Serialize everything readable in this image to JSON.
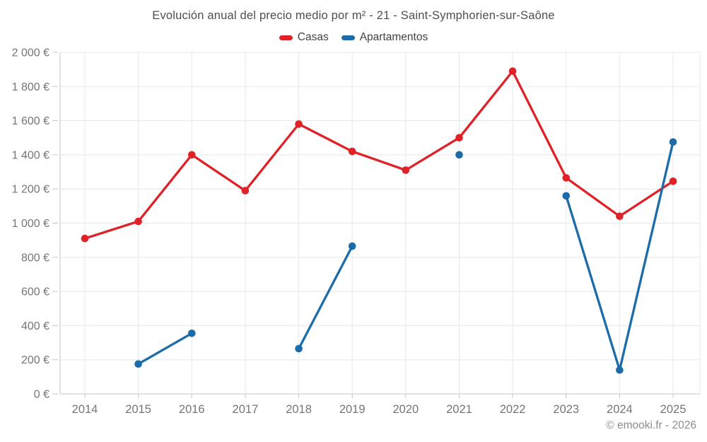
{
  "chart_data": {
    "type": "line",
    "title": "Evolución anual del precio medio por m² - 21 - Saint-Symphorien-sur-Saône",
    "xlabel": "",
    "ylabel": "",
    "categories": [
      "2014",
      "2015",
      "2016",
      "2017",
      "2018",
      "2019",
      "2020",
      "2021",
      "2022",
      "2023",
      "2024",
      "2025"
    ],
    "series": [
      {
        "name": "Casas",
        "color": "#df2228",
        "values": [
          910,
          1010,
          1400,
          1190,
          1580,
          1420,
          1310,
          1500,
          1890,
          1265,
          1040,
          1245
        ]
      },
      {
        "name": "Apartamentos",
        "color": "#1b6ca8",
        "values": [
          null,
          175,
          355,
          null,
          265,
          865,
          null,
          1400,
          null,
          1160,
          140,
          1475
        ]
      }
    ],
    "ylim": [
      0,
      2000
    ],
    "y_tick_step": 200,
    "y_tick_labels": [
      "0 €",
      "200 €",
      "400 €",
      "600 €",
      "800 €",
      "1 000 €",
      "1 200 €",
      "1 400 €",
      "1 600 €",
      "1 800 €",
      "2 000 €"
    ],
    "grid": true,
    "legend_position": "top",
    "colors": {
      "grid": "#e8e8e8",
      "axis": "#c6c6c6",
      "tick_label": "#757575",
      "title": "#4e4e4e",
      "legend_text": "#424242",
      "copyright": "#8c8c8c"
    }
  },
  "footer": {
    "copyright": "© emooki.fr - 2026"
  }
}
